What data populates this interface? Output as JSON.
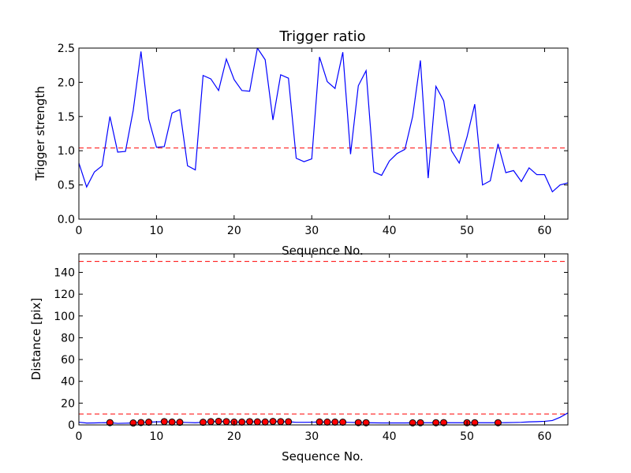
{
  "chart_data": [
    {
      "type": "line",
      "title": "Trigger ratio",
      "xlabel": "Sequence No.",
      "ylabel": "Trigger strength",
      "xlim": [
        0,
        63
      ],
      "ylim": [
        0,
        2.5
      ],
      "xticks": [
        0,
        10,
        20,
        30,
        40,
        50,
        60
      ],
      "yticks": [
        0.0,
        0.5,
        1.0,
        1.5,
        2.0,
        2.5
      ],
      "ytick_labels": [
        "0.0",
        "0.5",
        "1.0",
        "1.5",
        "2.0",
        "2.5"
      ],
      "grid": false,
      "series": [
        {
          "color": "#0000ff",
          "x": [
            0,
            1,
            2,
            3,
            4,
            5,
            6,
            7,
            8,
            9,
            10,
            11,
            12,
            13,
            14,
            15,
            16,
            17,
            18,
            19,
            20,
            21,
            22,
            23,
            24,
            25,
            26,
            27,
            28,
            29,
            30,
            31,
            32,
            33,
            34,
            35,
            36,
            37,
            38,
            39,
            40,
            41,
            42,
            43,
            44,
            45,
            46,
            47,
            48,
            49,
            50,
            51,
            52,
            53,
            54,
            55,
            56,
            57,
            58,
            59,
            60,
            61,
            62,
            63
          ],
          "y": [
            0.82,
            0.47,
            0.69,
            0.78,
            1.5,
            0.98,
            0.99,
            1.59,
            2.45,
            1.46,
            1.05,
            1.06,
            1.55,
            1.6,
            0.78,
            0.72,
            2.1,
            2.05,
            1.88,
            2.34,
            2.04,
            1.88,
            1.87,
            2.5,
            2.33,
            1.45,
            2.11,
            2.06,
            0.89,
            0.84,
            0.88,
            2.37,
            2.01,
            1.91,
            2.44,
            0.95,
            1.95,
            2.17,
            0.69,
            0.64,
            0.85,
            0.96,
            1.02,
            1.5,
            2.32,
            0.6,
            1.94,
            1.73,
            1.0,
            0.82,
            1.2,
            1.68,
            0.5,
            0.56,
            1.1,
            0.68,
            0.71,
            0.55,
            0.75,
            0.65,
            0.65,
            0.4,
            0.5,
            0.53
          ]
        }
      ],
      "threshold": {
        "y": 1.04,
        "color": "#ff0000",
        "style": "dashed"
      }
    },
    {
      "type": "line",
      "xlabel": "Sequence No.",
      "ylabel": "Distance [pix]",
      "xlim": [
        0,
        63
      ],
      "ylim": [
        0,
        157
      ],
      "xticks": [
        0,
        10,
        20,
        30,
        40,
        50,
        60
      ],
      "yticks": [
        0,
        20,
        40,
        60,
        80,
        100,
        120,
        140
      ],
      "ytick_labels": [
        "0",
        "20",
        "40",
        "60",
        "80",
        "100",
        "120",
        "140"
      ],
      "grid": false,
      "series": [
        {
          "color": "#0000ff",
          "x": [
            0,
            1,
            2,
            3,
            4,
            5,
            6,
            7,
            8,
            9,
            10,
            11,
            12,
            13,
            14,
            15,
            16,
            17,
            18,
            19,
            20,
            21,
            22,
            23,
            24,
            25,
            26,
            27,
            28,
            29,
            30,
            31,
            32,
            33,
            34,
            35,
            36,
            37,
            38,
            39,
            40,
            41,
            42,
            43,
            44,
            45,
            46,
            47,
            48,
            49,
            50,
            51,
            52,
            53,
            54,
            55,
            56,
            57,
            58,
            59,
            60,
            61,
            62,
            63
          ],
          "y": [
            2.5,
            1.7,
            1.8,
            2.0,
            2.1,
            1.4,
            1.6,
            1.8,
            2.2,
            2.5,
            2.8,
            3.0,
            2.6,
            2.4,
            2.2,
            2.0,
            2.4,
            3.0,
            3.3,
            3.0,
            2.6,
            2.6,
            3.0,
            2.8,
            2.7,
            3.2,
            3.0,
            2.9,
            2.4,
            2.4,
            2.5,
            2.7,
            2.6,
            2.6,
            2.5,
            2.3,
            2.1,
            2.0,
            1.9,
            1.8,
            1.8,
            1.8,
            1.8,
            1.9,
            2.0,
            2.0,
            2.0,
            2.1,
            2.0,
            2.0,
            2.0,
            2.0,
            2.0,
            2.0,
            2.0,
            2.1,
            2.2,
            2.4,
            2.8,
            3.0,
            3.3,
            4.0,
            7.0,
            11.0
          ]
        }
      ],
      "markers": {
        "color": "#ff0000",
        "x": [
          4,
          7,
          8,
          9,
          11,
          12,
          13,
          16,
          17,
          18,
          19,
          20,
          21,
          22,
          23,
          24,
          25,
          26,
          27,
          31,
          32,
          33,
          34,
          36,
          37,
          43,
          44,
          46,
          47,
          50,
          51,
          54
        ],
        "y": [
          2.1,
          1.8,
          2.2,
          2.5,
          3.0,
          2.6,
          2.4,
          2.4,
          3.0,
          3.3,
          3.0,
          2.6,
          2.6,
          3.0,
          2.8,
          2.7,
          3.2,
          3.0,
          2.9,
          2.7,
          2.6,
          2.6,
          2.5,
          2.1,
          2.0,
          1.9,
          2.0,
          2.0,
          2.1,
          2.0,
          2.0,
          2.0
        ]
      },
      "thresholds": [
        {
          "y": 10,
          "color": "#ff0000",
          "style": "dashed"
        },
        {
          "y": 150,
          "color": "#ff0000",
          "style": "dashed"
        }
      ]
    }
  ]
}
